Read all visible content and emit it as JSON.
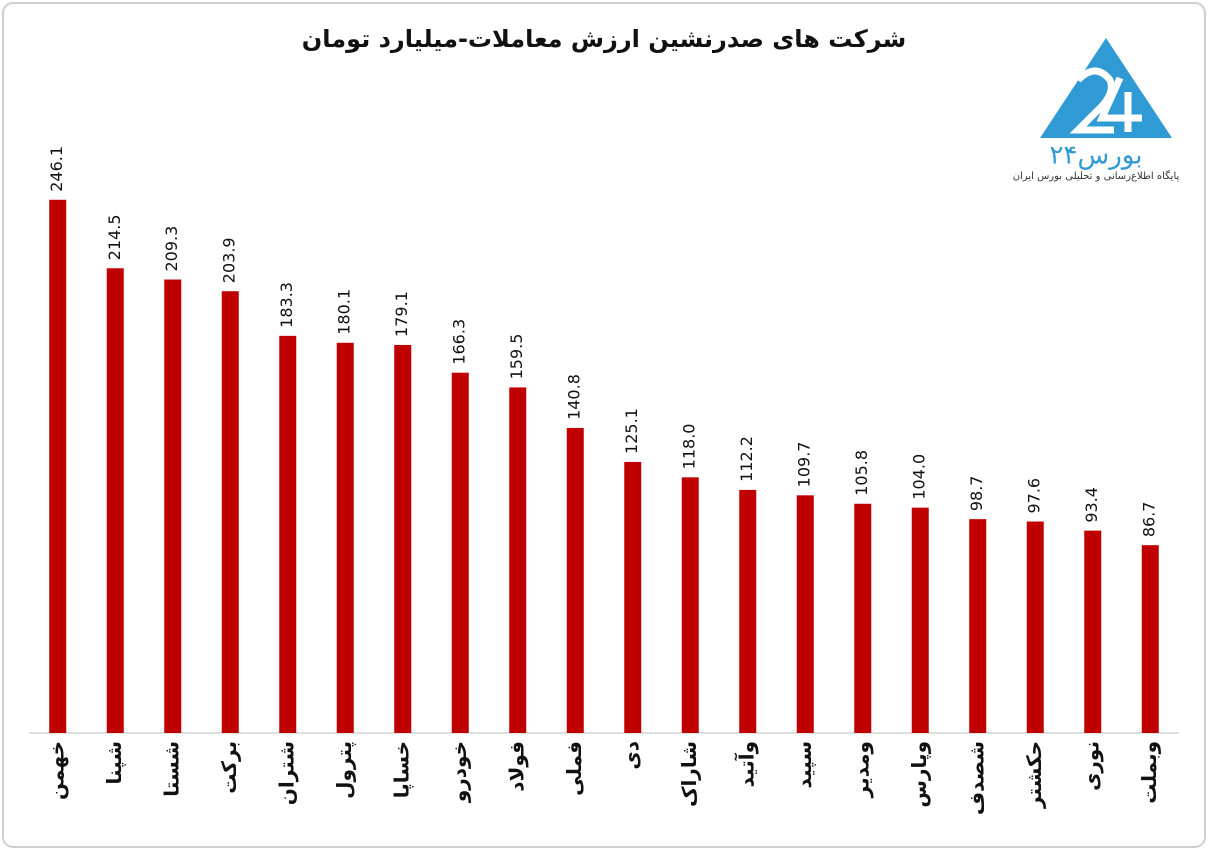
{
  "chart_data": {
    "type": "bar",
    "title": "شرکت های صدرنشین ارزش معاملات-میلیارد تومان",
    "categories": [
      "خهمن",
      "شپنا",
      "شستا",
      "برکت",
      "شتران",
      "پترول",
      "خساپا",
      "خودرو",
      "فولاد",
      "فملی",
      "دی",
      "شاراک",
      "وآتید",
      "سپید",
      "ومدیر",
      "وپارس",
      "شصدف",
      "حکشتر",
      "نوری",
      "وبملت"
    ],
    "values": [
      246.1,
      214.5,
      209.3,
      203.9,
      183.3,
      180.1,
      179.1,
      166.3,
      159.5,
      140.8,
      125.1,
      118.0,
      112.2,
      109.7,
      105.8,
      104.0,
      98.7,
      97.6,
      93.4,
      86.7
    ],
    "value_labels": [
      "246.1",
      "214.5",
      "209.3",
      "203.9",
      "183.3",
      "180.1",
      "179.1",
      "166.3",
      "159.5",
      "140.8",
      "125.1",
      "118.0",
      "112.2",
      "109.7",
      "105.8",
      "104.0",
      "98.7",
      "97.6",
      "93.4",
      "86.7"
    ],
    "color": "#c00000",
    "ylim": [
      0,
      300
    ]
  },
  "logo": {
    "name": "بورس۲۴",
    "tagline": "پایگاه اطلاع‌رسانی و تحلیلی بورس ایران"
  }
}
